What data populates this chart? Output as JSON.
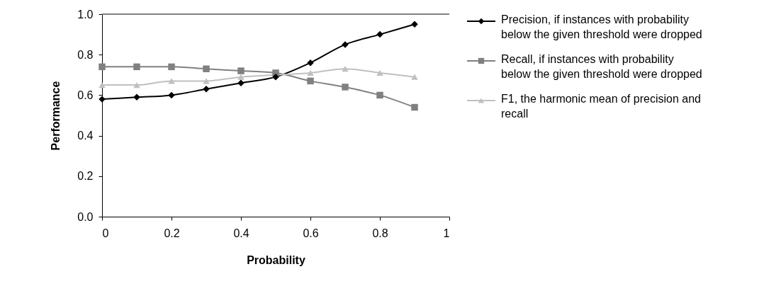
{
  "chart_data": {
    "type": "line",
    "xlabel": "Probability",
    "ylabel": "Performance",
    "x": [
      0,
      0.1,
      0.2,
      0.3,
      0.4,
      0.5,
      0.6,
      0.7,
      0.8,
      0.9
    ],
    "series": [
      {
        "name": "Precision, if instances with probability below the given threshold were dropped",
        "color": "#000000",
        "marker": "diamond",
        "values": [
          0.58,
          0.59,
          0.6,
          0.63,
          0.66,
          0.69,
          0.76,
          0.85,
          0.9,
          0.95
        ]
      },
      {
        "name": "Recall, if instances with probability below the given threshold were dropped",
        "color": "#808080",
        "marker": "square",
        "values": [
          0.74,
          0.74,
          0.74,
          0.73,
          0.72,
          0.71,
          0.67,
          0.64,
          0.6,
          0.54
        ]
      },
      {
        "name": "F1, the harmonic mean of precision and recall",
        "color": "#c0c0c0",
        "marker": "triangle",
        "values": [
          0.65,
          0.65,
          0.67,
          0.67,
          0.69,
          0.7,
          0.71,
          0.73,
          0.71,
          0.69
        ]
      }
    ],
    "xlim": [
      0,
      1
    ],
    "xticks": [
      0,
      0.2,
      0.4,
      0.6,
      0.8,
      1
    ],
    "ylim": [
      0,
      1
    ],
    "yticks": [
      {
        "value": 0,
        "label": "0.0"
      },
      {
        "value": 0.2,
        "label": "0.2"
      },
      {
        "value": 0.4,
        "label": "0.4"
      },
      {
        "value": 0.6,
        "label": "0.6"
      },
      {
        "value": 0.8,
        "label": "0.8"
      },
      {
        "value": 1,
        "label": "1.0"
      }
    ],
    "ref_lines": [
      {
        "axis": "y",
        "value": 1,
        "color": "#808080"
      }
    ],
    "grid": false,
    "legend": "right",
    "line_style": "solid"
  }
}
